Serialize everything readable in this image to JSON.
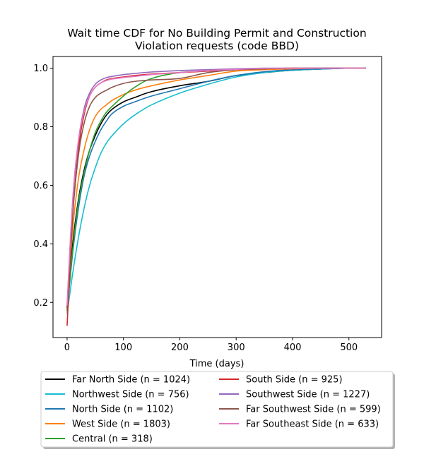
{
  "chart_data": {
    "type": "line",
    "title": "Wait time CDF for No Building Permit and Construction Violation  requests (code BBD)",
    "title_lines": [
      "Wait time CDF for No Building Permit and Construction",
      "Violation  requests (code BBD)"
    ],
    "xlabel": "Time (days)",
    "ylabel": "",
    "xlim": [
      -25,
      558
    ],
    "ylim": [
      0.08,
      1.04
    ],
    "x_ticks": [
      0,
      100,
      200,
      300,
      400,
      500
    ],
    "y_ticks": [
      0.2,
      0.4,
      0.6,
      0.8,
      1.0
    ],
    "x_tick_labels": [
      "0",
      "100",
      "200",
      "300",
      "400",
      "500"
    ],
    "y_tick_labels": [
      "0.2",
      "0.4",
      "0.6",
      "0.8",
      "1.0"
    ],
    "grid": false,
    "legend_position": "bottom-center",
    "series": [
      {
        "name": "Far North Side (n = 1024)",
        "color": "#000000",
        "x": [
          0,
          10,
          20,
          30,
          40,
          50,
          60,
          70,
          80,
          100,
          120,
          150,
          200,
          250,
          300,
          350,
          400,
          450,
          500,
          530
        ],
        "y": [
          0.18,
          0.4,
          0.55,
          0.65,
          0.72,
          0.77,
          0.81,
          0.84,
          0.86,
          0.885,
          0.9,
          0.92,
          0.94,
          0.955,
          0.975,
          0.985,
          0.993,
          0.997,
          1.0,
          1.0
        ]
      },
      {
        "name": "Northwest Side (n = 756)",
        "color": "#17becf",
        "x": [
          0,
          10,
          20,
          30,
          40,
          50,
          60,
          70,
          80,
          100,
          120,
          150,
          200,
          250,
          300,
          350,
          400,
          450,
          500,
          530
        ],
        "y": [
          0.16,
          0.3,
          0.42,
          0.52,
          0.6,
          0.66,
          0.71,
          0.745,
          0.77,
          0.81,
          0.84,
          0.875,
          0.915,
          0.945,
          0.97,
          0.985,
          0.993,
          0.997,
          1.0,
          1.0
        ]
      },
      {
        "name": "North Side (n = 1102)",
        "color": "#1f77b4",
        "x": [
          0,
          10,
          20,
          30,
          40,
          50,
          60,
          70,
          80,
          100,
          120,
          150,
          200,
          250,
          300,
          350,
          400,
          450,
          500,
          530
        ],
        "y": [
          0.17,
          0.37,
          0.52,
          0.63,
          0.7,
          0.75,
          0.79,
          0.82,
          0.845,
          0.87,
          0.885,
          0.905,
          0.93,
          0.955,
          0.975,
          0.988,
          0.995,
          0.998,
          1.0,
          1.0
        ]
      },
      {
        "name": "West Side (n = 1803)",
        "color": "#ff7f0e",
        "x": [
          0,
          10,
          20,
          30,
          40,
          50,
          60,
          70,
          80,
          100,
          120,
          150,
          200,
          250,
          300,
          350,
          400,
          450,
          500,
          530
        ],
        "y": [
          0.17,
          0.45,
          0.62,
          0.72,
          0.79,
          0.835,
          0.86,
          0.875,
          0.89,
          0.91,
          0.925,
          0.94,
          0.96,
          0.975,
          0.99,
          0.995,
          0.998,
          1.0,
          1.0,
          1.0
        ]
      },
      {
        "name": "Central (n = 318)",
        "color": "#2ca02c",
        "x": [
          0,
          10,
          20,
          30,
          40,
          50,
          60,
          70,
          80,
          100,
          120,
          150,
          200,
          250,
          300,
          350,
          400,
          450,
          500,
          530
        ],
        "y": [
          0.17,
          0.38,
          0.54,
          0.64,
          0.72,
          0.78,
          0.82,
          0.85,
          0.87,
          0.905,
          0.935,
          0.965,
          0.985,
          0.99,
          0.995,
          0.998,
          1.0,
          1.0,
          1.0,
          1.0
        ]
      },
      {
        "name": "South Side (n = 925)",
        "color": "#d62728",
        "x": [
          0,
          10,
          20,
          30,
          40,
          50,
          60,
          70,
          80,
          100,
          120,
          150,
          200,
          250,
          300,
          350,
          400,
          450,
          500,
          530
        ],
        "y": [
          0.12,
          0.5,
          0.72,
          0.84,
          0.905,
          0.935,
          0.95,
          0.96,
          0.965,
          0.97,
          0.975,
          0.98,
          0.985,
          0.99,
          0.995,
          0.998,
          1.0,
          1.0,
          1.0,
          1.0
        ]
      },
      {
        "name": "Southwest Side (n = 1227)",
        "color": "#9467bd",
        "x": [
          0,
          10,
          20,
          30,
          40,
          50,
          60,
          70,
          80,
          100,
          120,
          150,
          200,
          250,
          300,
          350,
          400,
          450,
          500,
          530
        ],
        "y": [
          0.19,
          0.55,
          0.75,
          0.86,
          0.915,
          0.945,
          0.96,
          0.968,
          0.972,
          0.978,
          0.982,
          0.987,
          0.992,
          0.995,
          0.998,
          1.0,
          1.0,
          1.0,
          1.0,
          1.0
        ]
      },
      {
        "name": "Far Southwest Side (n = 599)",
        "color": "#8c564b",
        "x": [
          0,
          10,
          20,
          30,
          40,
          50,
          60,
          70,
          80,
          100,
          120,
          150,
          200,
          250,
          300,
          350,
          400,
          450,
          500,
          530
        ],
        "y": [
          0.18,
          0.5,
          0.7,
          0.81,
          0.87,
          0.9,
          0.915,
          0.925,
          0.935,
          0.948,
          0.955,
          0.96,
          0.965,
          0.985,
          0.995,
          0.998,
          1.0,
          1.0,
          1.0,
          1.0
        ]
      },
      {
        "name": "Far Southeast Side (n = 633)",
        "color": "#e377c2",
        "x": [
          0,
          10,
          20,
          30,
          40,
          50,
          60,
          70,
          80,
          100,
          120,
          150,
          200,
          250,
          300,
          350,
          400,
          450,
          500,
          530
        ],
        "y": [
          0.19,
          0.55,
          0.75,
          0.85,
          0.905,
          0.935,
          0.95,
          0.958,
          0.963,
          0.968,
          0.972,
          0.978,
          0.985,
          0.992,
          0.996,
          0.999,
          1.0,
          1.0,
          1.0,
          1.0
        ]
      }
    ]
  }
}
